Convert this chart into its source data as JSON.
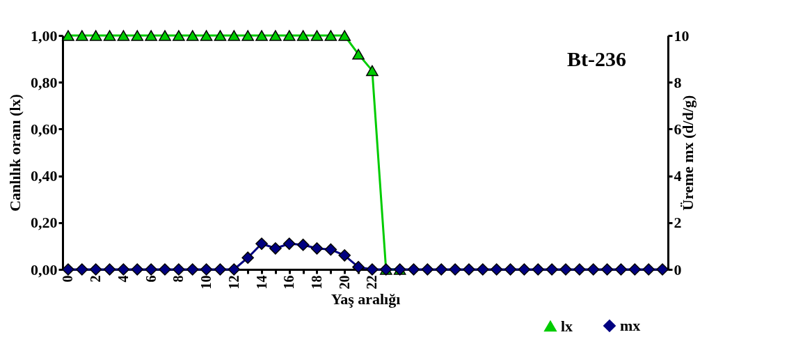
{
  "chart_data": {
    "type": "line",
    "xlabel": "Yaş aralığı",
    "ylabel": "Canlılık oranı (lx)",
    "y2label": "Üreme mx (d/d/g)",
    "annotations": [
      "Bt-236"
    ],
    "categories": [
      "0",
      null,
      "2",
      null,
      "4",
      null,
      "6",
      null,
      "8",
      null,
      "10",
      null,
      "12",
      null,
      "14",
      null,
      "16",
      null,
      "18",
      null,
      "20",
      null,
      "22",
      null,
      null,
      null,
      null,
      null,
      null,
      null,
      null,
      null,
      null,
      null,
      null,
      null,
      null,
      null,
      null,
      null,
      null,
      null,
      null,
      null
    ],
    "series": [
      {
        "name": "lx",
        "color": "#00cc00",
        "marker": "triangle",
        "values": [
          1,
          1,
          1,
          1,
          1,
          1,
          1,
          1,
          1,
          1,
          1,
          1,
          1,
          1,
          1,
          1,
          1,
          1,
          1,
          1,
          1,
          0.92,
          0.85,
          0,
          0,
          null,
          null,
          null,
          null,
          null,
          null,
          null,
          null,
          null,
          null,
          null,
          null,
          null,
          null,
          null,
          null,
          null,
          null,
          null
        ]
      },
      {
        "name": "mx",
        "color": "#000080",
        "marker": "diamond",
        "axis": "y2",
        "values": [
          0,
          0,
          0,
          0,
          0,
          0,
          0,
          0,
          0,
          0,
          0,
          0,
          0,
          0.5,
          1.1,
          0.9,
          1.1,
          1.05,
          0.9,
          0.85,
          0.6,
          0.1,
          0,
          0,
          0,
          0,
          0,
          0,
          0,
          0,
          0,
          0,
          0,
          0,
          0,
          0,
          0,
          0,
          0,
          0,
          0,
          0,
          0,
          0
        ]
      }
    ],
    "ylim": [
      0,
      1
    ],
    "yticks": [
      {
        "value": 0,
        "label": "0,00"
      },
      {
        "value": 0.2,
        "label": "0,20"
      },
      {
        "value": 0.4,
        "label": "0,40"
      },
      {
        "value": 0.6,
        "label": "0,60"
      },
      {
        "value": 0.8,
        "label": "0,80"
      },
      {
        "value": 1,
        "label": "1,00"
      }
    ],
    "y2lim": [
      0,
      10
    ],
    "y2ticks": [
      0,
      2,
      4,
      6,
      8,
      10
    ],
    "grid": false,
    "legend": "bottom right"
  }
}
